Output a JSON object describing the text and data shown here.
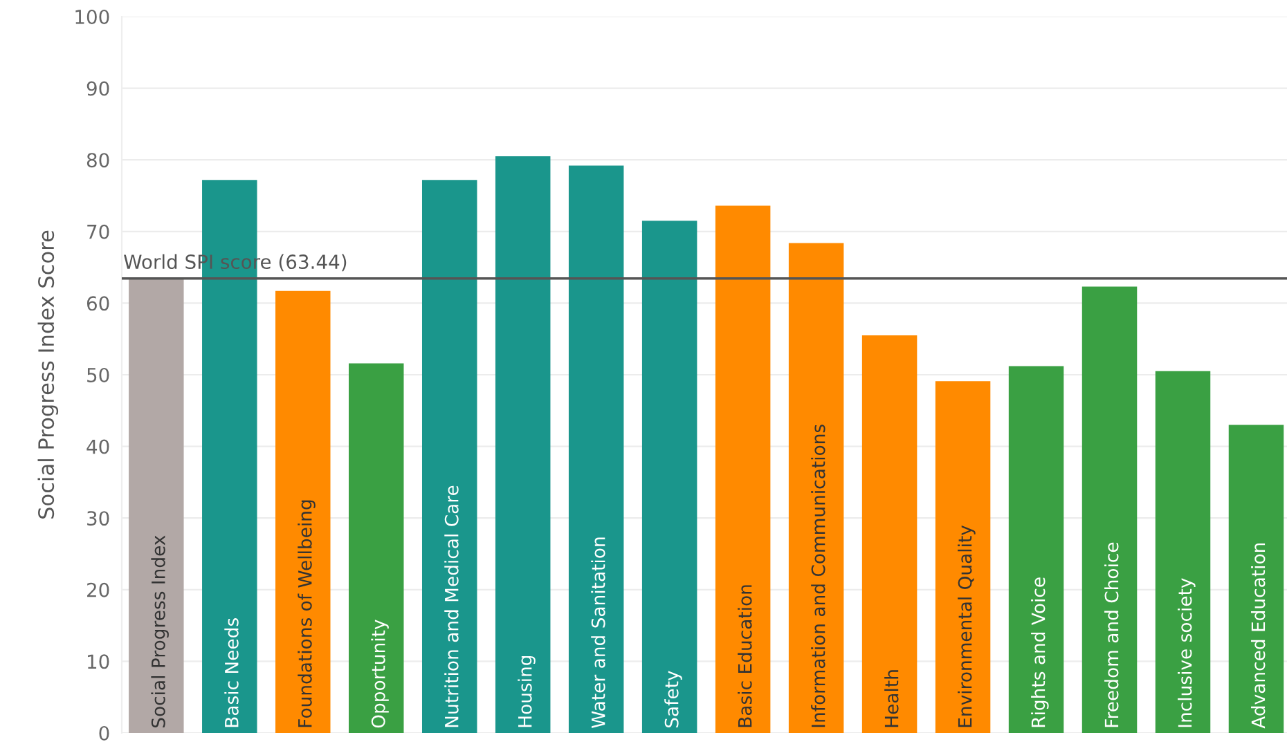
{
  "chart_data": {
    "type": "bar",
    "ylabel": "Social Progress Index Score",
    "categories": [
      "Social Progress Index",
      "Basic Needs",
      "Foundations of Wellbeing",
      "Opportunity",
      "Nutrition and Medical Care",
      "Housing",
      "Water and Sanitation",
      "Safety",
      "Basic Education",
      "Information and Communications",
      "Health",
      "Environmental Quality",
      "Rights and Voice",
      "Freedom and Choice",
      "Inclusive society",
      "Advanced Education"
    ],
    "values": [
      63.4,
      77.2,
      61.7,
      51.6,
      77.2,
      80.5,
      79.2,
      71.5,
      73.6,
      68.4,
      55.5,
      49.1,
      51.2,
      62.3,
      50.5,
      43.0
    ],
    "colors": [
      "#b2a8a6",
      "#1a968c",
      "#ff8a00",
      "#3aa043",
      "#1a968c",
      "#1a968c",
      "#1a968c",
      "#1a968c",
      "#ff8a00",
      "#ff8a00",
      "#ff8a00",
      "#ff8a00",
      "#3aa043",
      "#3aa043",
      "#3aa043",
      "#3aa043"
    ],
    "ylim": [
      0,
      100
    ],
    "yticks": [
      0,
      10,
      20,
      30,
      40,
      50,
      60,
      70,
      80,
      90,
      100
    ],
    "ref_lines": [
      {
        "axis": "y",
        "value": 63.44,
        "label": "World SPI score (63.44)",
        "color": "#555555"
      }
    ],
    "grid": "y"
  }
}
